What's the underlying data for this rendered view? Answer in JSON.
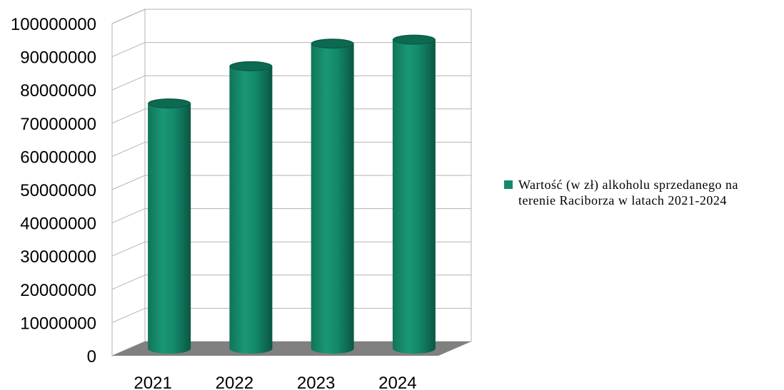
{
  "chart_data": {
    "type": "bar",
    "style": "3d-cylinder",
    "categories": [
      "2021",
      "2022",
      "2023",
      "2024"
    ],
    "series": [
      {
        "name": "Wartość (w zł) alkoholu sprzedanego na terenie Raciborza w latach 2021-2024",
        "values": [
          73800000,
          85000000,
          91800000,
          93000000
        ],
        "color": "#138a6b"
      }
    ],
    "ylim": [
      0,
      100000000
    ],
    "yticks": [
      "0",
      "10000000",
      "20000000",
      "30000000",
      "40000000",
      "50000000",
      "60000000",
      "70000000",
      "80000000",
      "90000000",
      "100000000"
    ],
    "grid": true,
    "legend_position": "right",
    "colors": {
      "bar": "#138a6b",
      "bar_dark": "#0b5a45",
      "bar_light": "#2aa882",
      "floor": "#808080",
      "grid": "#b3b3b3"
    }
  }
}
